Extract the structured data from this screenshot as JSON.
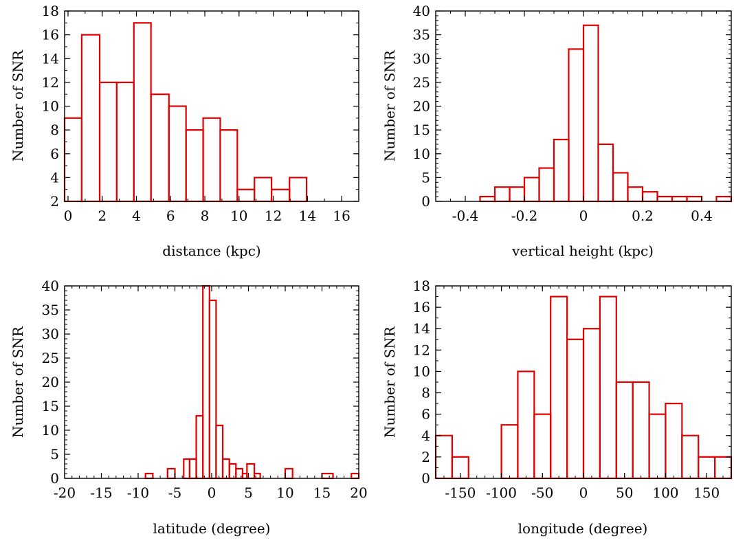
{
  "chart_data": [
    {
      "type": "bar",
      "xlabel": "distance (kpc)",
      "ylabel": "Number of SNR",
      "xlim": [
        -0.2,
        17
      ],
      "ylim": [
        2,
        18
      ],
      "xticks": [
        0,
        2,
        4,
        6,
        8,
        10,
        12,
        14,
        16
      ],
      "yticks": [
        2,
        4,
        6,
        8,
        10,
        12,
        14,
        16,
        18
      ],
      "x_minor_step": 1,
      "y_minor_step": 1,
      "bar_color": "#e00000",
      "bins": [
        {
          "x0": -0.2,
          "x1": 0.8,
          "y": 9
        },
        {
          "x0": 0.8,
          "x1": 1.85,
          "y": 16
        },
        {
          "x0": 1.85,
          "x1": 2.85,
          "y": 12
        },
        {
          "x0": 2.85,
          "x1": 3.85,
          "y": 12
        },
        {
          "x0": 3.85,
          "x1": 4.85,
          "y": 17
        },
        {
          "x0": 4.85,
          "x1": 5.9,
          "y": 11
        },
        {
          "x0": 5.9,
          "x1": 6.9,
          "y": 10
        },
        {
          "x0": 6.9,
          "x1": 7.9,
          "y": 8
        },
        {
          "x0": 7.9,
          "x1": 8.9,
          "y": 9
        },
        {
          "x0": 8.9,
          "x1": 9.9,
          "y": 8
        },
        {
          "x0": 9.9,
          "x1": 10.9,
          "y": 3
        },
        {
          "x0": 10.9,
          "x1": 11.9,
          "y": 4
        },
        {
          "x0": 11.9,
          "x1": 12.95,
          "y": 3
        },
        {
          "x0": 12.95,
          "x1": 13.95,
          "y": 4
        }
      ]
    },
    {
      "type": "bar",
      "xlabel": "vertical height (kpc)",
      "ylabel": "Number of SNR",
      "xlim": [
        -0.5,
        0.5
      ],
      "ylim": [
        0,
        40
      ],
      "xticks": [
        -0.4,
        -0.2,
        0,
        0.2,
        0.4
      ],
      "yticks": [
        0,
        5,
        10,
        15,
        20,
        25,
        30,
        35,
        40
      ],
      "x_minor_step": 0.05,
      "y_minor_step": 1,
      "bar_color": "#e00000",
      "bins": [
        {
          "x0": -0.35,
          "x1": -0.3,
          "y": 1
        },
        {
          "x0": -0.3,
          "x1": -0.25,
          "y": 3
        },
        {
          "x0": -0.25,
          "x1": -0.2,
          "y": 3
        },
        {
          "x0": -0.2,
          "x1": -0.15,
          "y": 5
        },
        {
          "x0": -0.15,
          "x1": -0.1,
          "y": 7
        },
        {
          "x0": -0.1,
          "x1": -0.05,
          "y": 13
        },
        {
          "x0": -0.05,
          "x1": 0.0,
          "y": 32
        },
        {
          "x0": 0.0,
          "x1": 0.05,
          "y": 37
        },
        {
          "x0": 0.05,
          "x1": 0.1,
          "y": 12
        },
        {
          "x0": 0.1,
          "x1": 0.15,
          "y": 6
        },
        {
          "x0": 0.15,
          "x1": 0.2,
          "y": 3
        },
        {
          "x0": 0.2,
          "x1": 0.25,
          "y": 2
        },
        {
          "x0": 0.25,
          "x1": 0.3,
          "y": 1
        },
        {
          "x0": 0.3,
          "x1": 0.35,
          "y": 1
        },
        {
          "x0": 0.35,
          "x1": 0.4,
          "y": 1
        },
        {
          "x0": 0.45,
          "x1": 0.5,
          "y": 1
        }
      ]
    },
    {
      "type": "bar",
      "xlabel": "latitude (degree)",
      "ylabel": "Number of SNR",
      "xlim": [
        -20,
        20
      ],
      "ylim": [
        0,
        40
      ],
      "xticks": [
        -20,
        -15,
        -10,
        -5,
        0,
        5,
        10,
        15,
        20
      ],
      "yticks": [
        0,
        5,
        10,
        15,
        20,
        25,
        30,
        35,
        40
      ],
      "x_minor_step": 1,
      "y_minor_step": 1,
      "bar_color": "#e00000",
      "bins": [
        {
          "x0": -9.0,
          "x1": -8.0,
          "y": 1
        },
        {
          "x0": -6.0,
          "x1": -5.0,
          "y": 2
        },
        {
          "x0": -3.8,
          "x1": -3.0,
          "y": 4
        },
        {
          "x0": -3.0,
          "x1": -2.1,
          "y": 4
        },
        {
          "x0": -2.1,
          "x1": -1.2,
          "y": 13
        },
        {
          "x0": -1.2,
          "x1": -0.3,
          "y": 40
        },
        {
          "x0": -0.3,
          "x1": 0.6,
          "y": 37
        },
        {
          "x0": 0.6,
          "x1": 1.5,
          "y": 11
        },
        {
          "x0": 1.5,
          "x1": 2.4,
          "y": 4
        },
        {
          "x0": 2.4,
          "x1": 3.3,
          "y": 3
        },
        {
          "x0": 3.3,
          "x1": 4.2,
          "y": 2
        },
        {
          "x0": 4.2,
          "x1": 4.8,
          "y": 1
        },
        {
          "x0": 4.8,
          "x1": 5.8,
          "y": 3
        },
        {
          "x0": 5.8,
          "x1": 6.6,
          "y": 1
        },
        {
          "x0": 10.0,
          "x1": 11.0,
          "y": 2
        },
        {
          "x0": 15.0,
          "x1": 16.5,
          "y": 1
        },
        {
          "x0": 19.0,
          "x1": 20.0,
          "y": 1
        }
      ]
    },
    {
      "type": "bar",
      "xlabel": "longitude (degree)",
      "ylabel": "Number of SNR",
      "xlim": [
        -180,
        180
      ],
      "ylim": [
        0,
        18
      ],
      "xticks": [
        -150,
        -100,
        -50,
        0,
        50,
        100,
        150
      ],
      "yticks": [
        0,
        2,
        4,
        6,
        8,
        10,
        12,
        14,
        16,
        18
      ],
      "x_minor_step": 10,
      "y_minor_step": 1,
      "bar_color": "#e00000",
      "bins": [
        {
          "x0": -180,
          "x1": -160,
          "y": 4
        },
        {
          "x0": -160,
          "x1": -140,
          "y": 2
        },
        {
          "x0": -100,
          "x1": -80,
          "y": 5
        },
        {
          "x0": -80,
          "x1": -60,
          "y": 10
        },
        {
          "x0": -60,
          "x1": -40,
          "y": 6
        },
        {
          "x0": -40,
          "x1": -20,
          "y": 17
        },
        {
          "x0": -20,
          "x1": 0,
          "y": 13
        },
        {
          "x0": 0,
          "x1": 20,
          "y": 14
        },
        {
          "x0": 20,
          "x1": 40,
          "y": 17
        },
        {
          "x0": 40,
          "x1": 60,
          "y": 9
        },
        {
          "x0": 60,
          "x1": 80,
          "y": 9
        },
        {
          "x0": 80,
          "x1": 100,
          "y": 6
        },
        {
          "x0": 100,
          "x1": 120,
          "y": 7
        },
        {
          "x0": 120,
          "x1": 140,
          "y": 4
        },
        {
          "x0": 140,
          "x1": 160,
          "y": 2
        },
        {
          "x0": 160,
          "x1": 180,
          "y": 2
        }
      ]
    }
  ]
}
